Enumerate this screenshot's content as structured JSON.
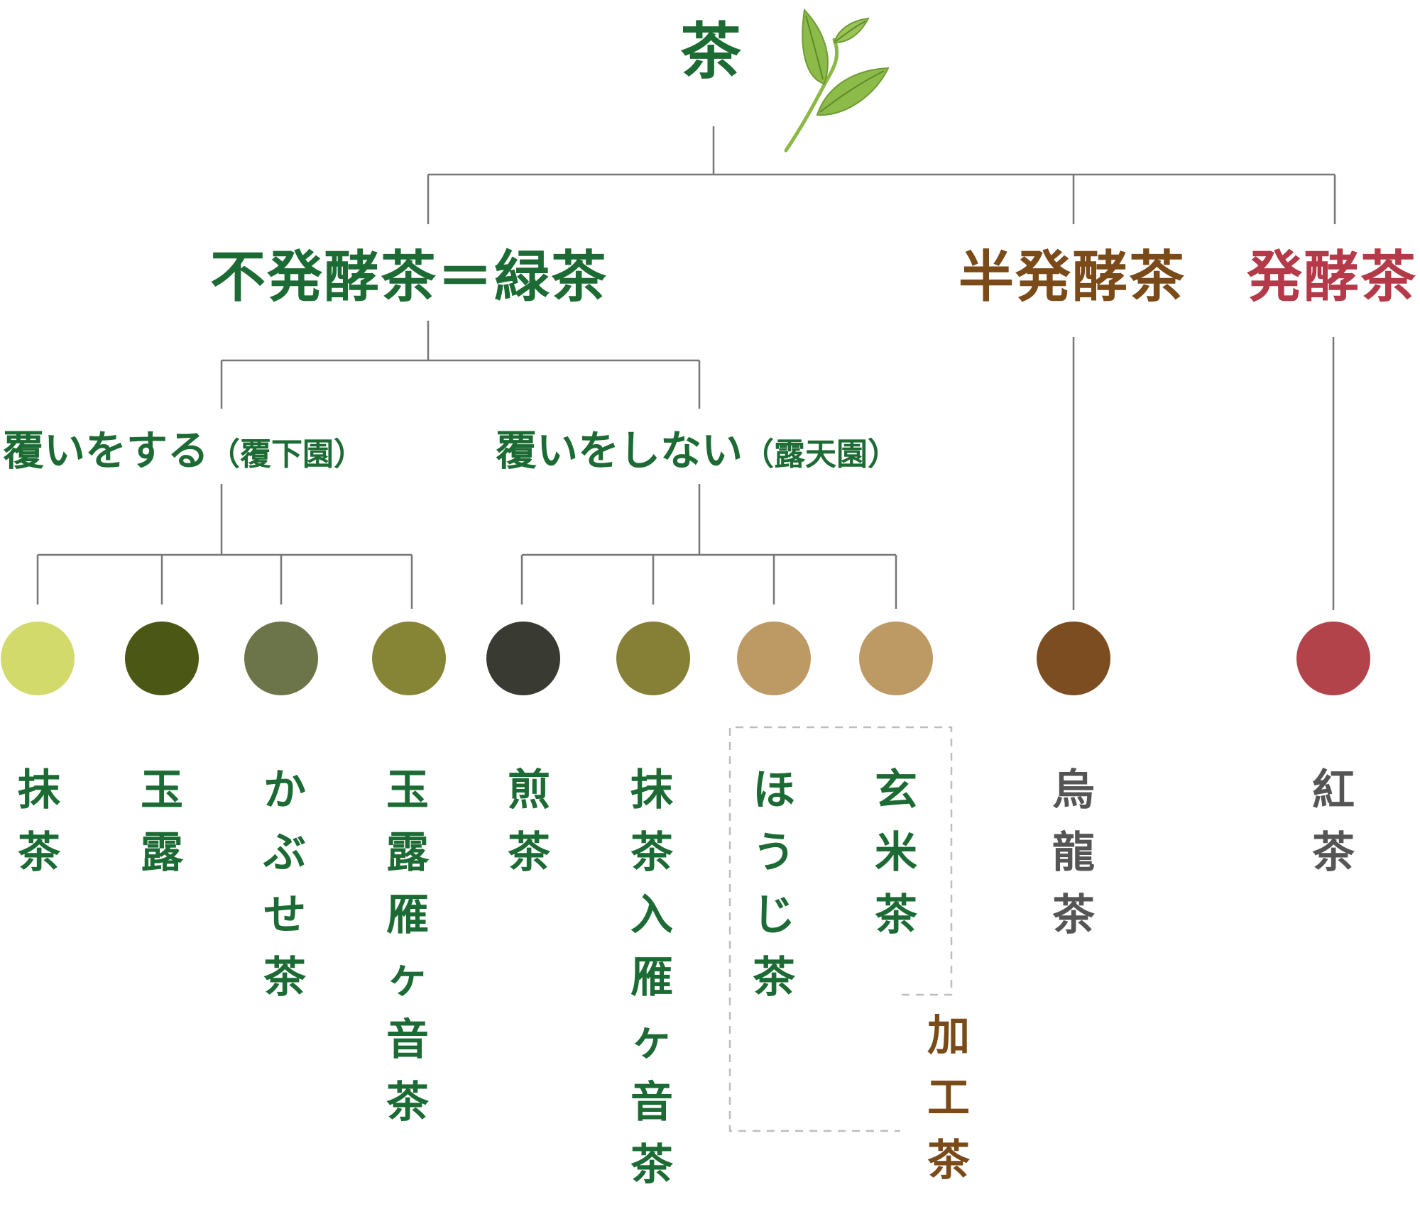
{
  "root": {
    "label": "茶"
  },
  "categories": {
    "unfermented": {
      "label": "不発酵茶＝緑茶",
      "color": "#1d6b34"
    },
    "semi_fermented": {
      "label": "半発酵茶",
      "color": "#7a4a19"
    },
    "fermented": {
      "label": "発酵茶",
      "color": "#b43a49"
    }
  },
  "subcategories": {
    "shaded": {
      "label": "覆いをする",
      "note": "（覆下園）"
    },
    "unshaded": {
      "label": "覆いをしない",
      "note": "（露天園）"
    }
  },
  "processed_group": {
    "label": "加工茶",
    "color": "#7a4a19"
  },
  "teas": [
    {
      "name": "抹茶",
      "color": "#d3da6c"
    },
    {
      "name": "玉露",
      "color": "#4a5715"
    },
    {
      "name": "かぶせ茶",
      "color": "#6c7549"
    },
    {
      "name": "玉露雁ヶ音茶",
      "color": "#868536"
    },
    {
      "name": "煎茶",
      "color": "#393a31"
    },
    {
      "name": "抹茶入雁ヶ音茶",
      "color": "#868036"
    },
    {
      "name": "ほうじ茶",
      "color": "#bd9a64"
    },
    {
      "name": "玄米茶",
      "color": "#bd9a64"
    },
    {
      "name": "烏龍茶",
      "color": "#7d4d22"
    },
    {
      "name": "紅茶",
      "color": "#b2434a"
    }
  ]
}
